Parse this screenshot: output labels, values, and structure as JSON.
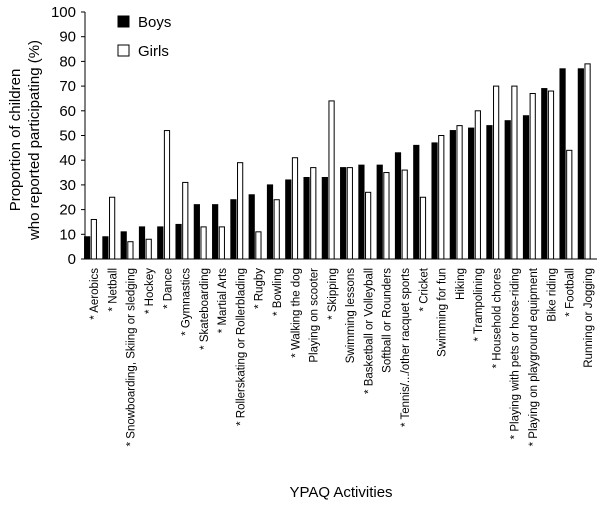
{
  "chart_data": {
    "type": "bar",
    "title": "",
    "xlabel": "YPAQ Activities",
    "ylabel_lines": [
      "Proportion of children",
      "who reported participating (%)"
    ],
    "ylim": [
      0,
      100
    ],
    "yticks": [
      0,
      10,
      20,
      30,
      40,
      50,
      60,
      70,
      80,
      90,
      100
    ],
    "grid": false,
    "legend_position": "top-left",
    "categories": [
      "* Aerobics",
      "* Netball",
      "* Snowboarding, Skiing or sledging",
      "* Hockey",
      "* Dance",
      "* Gymnastics",
      "* Skateboarding",
      "* Martial Arts",
      "* Rollerskating or Rollerblading",
      "* Rugby",
      "* Bowling",
      "* Walking the dog",
      "Playing on scooter",
      "* Skipping",
      "Swimming lessons",
      "* Basketball or Volleyball",
      "Softball or Rounders",
      "* Tennis/.../other racquet sports",
      "* Cricket",
      "Swimming for fun",
      "Hiking",
      "* Trampolining",
      "* Household chores",
      "* Playing with pets or horse-riding",
      "* Playing on playground equipment",
      "Bike riding",
      "* Football",
      "Running or Jogging"
    ],
    "series": [
      {
        "name": "Boys",
        "color": "#000000",
        "values": [
          9,
          9,
          11,
          13,
          13,
          14,
          22,
          22,
          24,
          26,
          30,
          32,
          33,
          33,
          37,
          38,
          38,
          43,
          46,
          47,
          52,
          53,
          54,
          56,
          58,
          69,
          77,
          77
        ]
      },
      {
        "name": "Girls",
        "color": "#ffffff",
        "values": [
          16,
          25,
          7,
          8,
          52,
          31,
          13,
          13,
          39,
          11,
          24,
          41,
          37,
          64,
          37,
          27,
          35,
          36,
          25,
          50,
          54,
          60,
          70,
          70,
          67,
          68,
          44,
          79
        ]
      }
    ]
  }
}
